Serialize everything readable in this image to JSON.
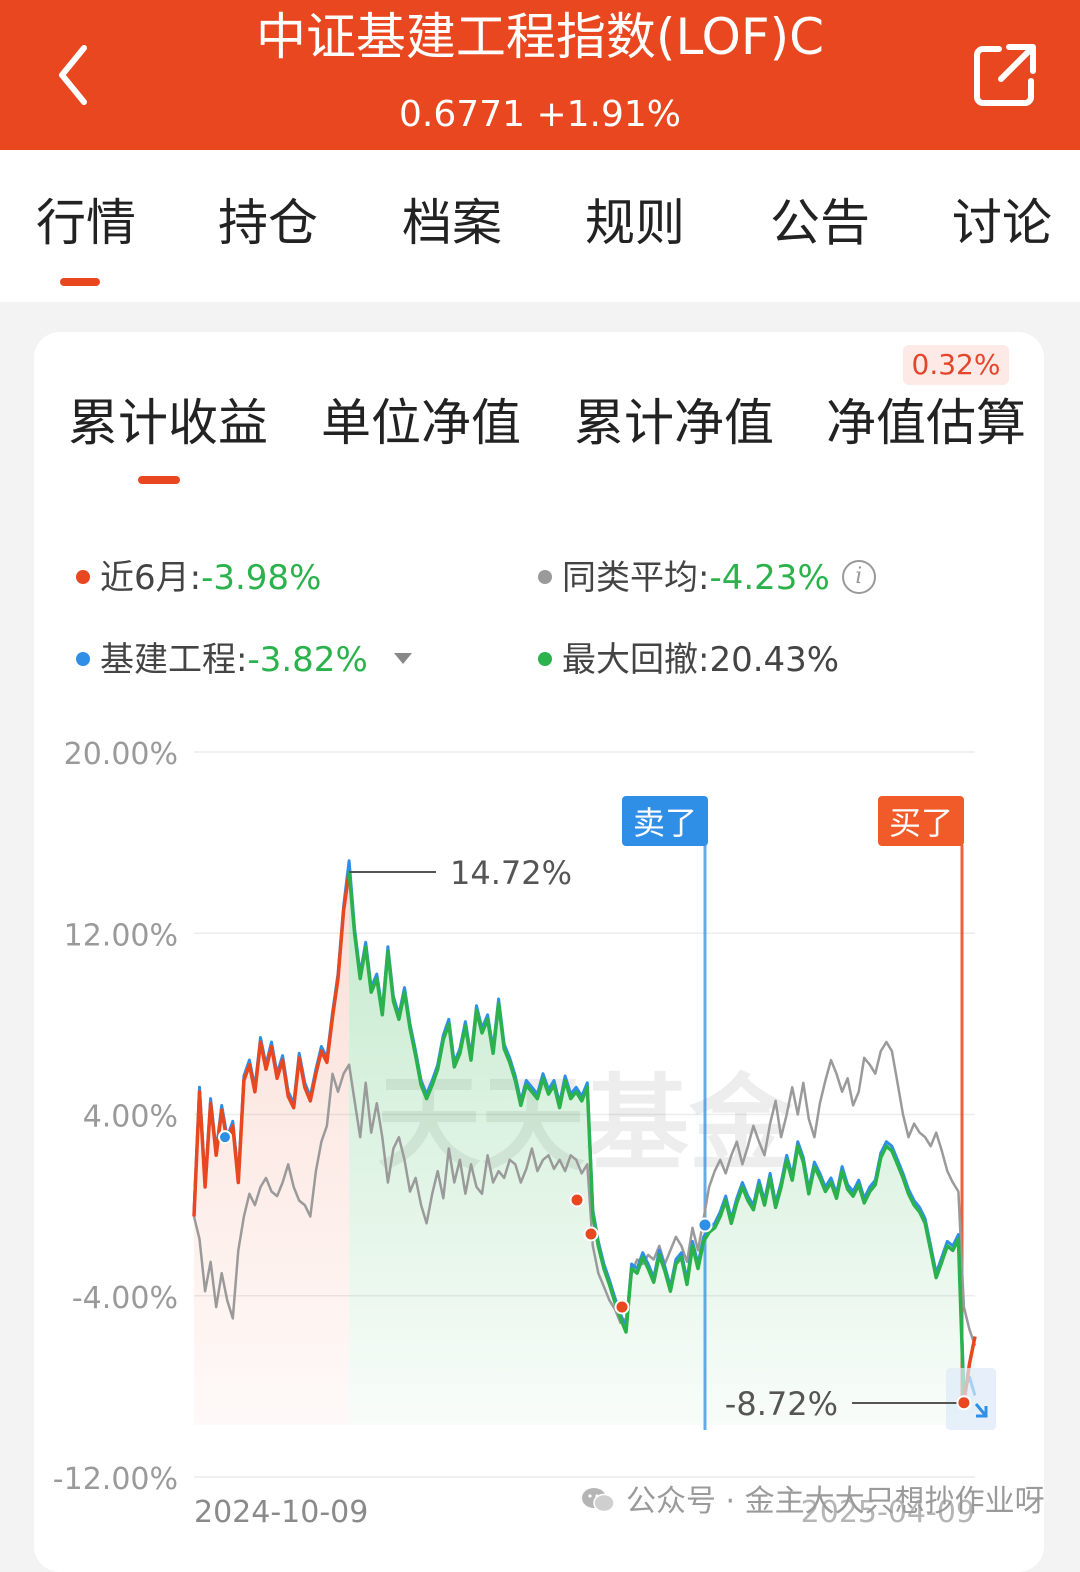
{
  "header": {
    "title": "中证基建工程指数(LOF)C",
    "subtitle": "0.6771 +1.91%",
    "back_icon": "chevron-left-icon",
    "share_icon": "share-icon",
    "background": "#e9471f"
  },
  "tabs": [
    {
      "label": "行情",
      "active": true
    },
    {
      "label": "持仓",
      "active": false
    },
    {
      "label": "档案",
      "active": false
    },
    {
      "label": "规则",
      "active": false
    },
    {
      "label": "公告",
      "active": false
    },
    {
      "label": "讨论",
      "active": false
    }
  ],
  "subtabs": [
    {
      "label": "累计收益",
      "active": true
    },
    {
      "label": "单位净值",
      "active": false
    },
    {
      "label": "累计净值",
      "active": false
    },
    {
      "label": "净值估算",
      "active": false
    }
  ],
  "estimate_badge": "0.32%",
  "stats": {
    "fund": {
      "label": "近6月:",
      "value": "-3.98%",
      "color": "#e9471f"
    },
    "category_avg": {
      "label": "同类平均:",
      "value": "-4.23%",
      "color": "#9a9a9a"
    },
    "benchmark": {
      "label": "基建工程:",
      "value": "-3.82%",
      "color": "#2f8fe6"
    },
    "max_drawdown": {
      "label": "最大回撤:",
      "value": "20.43%",
      "color": "#2bb24c"
    }
  },
  "chart_data": {
    "type": "line",
    "y_ticks": [
      "20.00%",
      "12.00%",
      "4.00%",
      "-4.00%",
      "-12.00%"
    ],
    "ylim": [
      -12,
      20
    ],
    "x_labels": [
      "2024-10-09",
      "2025-04-09"
    ],
    "watermark": "天天基金",
    "annotations": {
      "max": "14.72%",
      "min": "-8.72%",
      "sell": "卖了",
      "buy": "买了"
    },
    "series": [
      {
        "color": "#e9471f",
        "values": [
          -0.5,
          5.0,
          0.8,
          4.5,
          2.2,
          4.2,
          2.8,
          3.5,
          1.0,
          5.5,
          6.2,
          5.0,
          7.2,
          6.0,
          7.0,
          5.6,
          6.4,
          4.8,
          4.3,
          6.5,
          5.2,
          4.6,
          5.8,
          6.8,
          6.3,
          8.3,
          10.0,
          13.0,
          14.72,
          12.0,
          10.0,
          11.4,
          9.4,
          10.0,
          8.4,
          11.2,
          9.0,
          8.2,
          9.4,
          7.8,
          6.6,
          5.3,
          4.7,
          5.3,
          6.0,
          7.3,
          8.0,
          6.1,
          6.7,
          7.9,
          6.4,
          8.6,
          7.6,
          8.2,
          6.7,
          8.9,
          6.9,
          6.3,
          5.5,
          4.4,
          5.3,
          5.0,
          4.7,
          5.6,
          4.9,
          5.3,
          4.3,
          5.5,
          4.7,
          5.0,
          4.6,
          5.2,
          -0.4,
          -1.8,
          -2.8,
          -3.5,
          -4.3,
          -5.0,
          -5.6,
          -2.8,
          -3.0,
          -2.3,
          -2.8,
          -3.4,
          -2.2,
          -2.9,
          -3.8,
          -2.6,
          -2.3,
          -3.5,
          -1.8,
          -2.8,
          -1.6,
          -1.2,
          -1.0,
          -0.5,
          0.2,
          -0.8,
          0.1,
          0.8,
          0.2,
          -0.2,
          0.9,
          0.0,
          1.2,
          -0.1,
          0.8,
          2.0,
          1.1,
          2.6,
          1.9,
          0.5,
          1.7,
          1.2,
          0.6,
          1.0,
          0.3,
          1.5,
          0.7,
          0.4,
          0.9,
          0.1,
          0.6,
          0.9,
          2.1,
          2.6,
          2.4,
          1.8,
          1.2,
          0.5,
          0.0,
          -0.3,
          -0.8,
          -2.0,
          -3.2,
          -2.5,
          -1.8,
          -2.0,
          -1.5,
          -8.72,
          -7.0,
          -5.8
        ]
      },
      {
        "color": "#2f8fe6",
        "values": [
          -0.3,
          5.2,
          1.0,
          4.7,
          2.4,
          4.4,
          3.0,
          3.7,
          1.2,
          5.7,
          6.4,
          5.2,
          7.4,
          6.2,
          7.2,
          5.8,
          6.6,
          5.0,
          4.5,
          6.7,
          5.4,
          4.8,
          6.0,
          7.0,
          6.5,
          8.5,
          10.2,
          13.2,
          15.2,
          12.2,
          10.2,
          11.6,
          9.6,
          10.2,
          8.6,
          11.4,
          9.2,
          8.4,
          9.6,
          8.0,
          6.8,
          5.5,
          4.9,
          5.5,
          6.2,
          7.5,
          8.2,
          6.3,
          6.9,
          8.1,
          6.6,
          8.8,
          7.8,
          8.4,
          6.9,
          9.1,
          7.1,
          6.5,
          5.7,
          4.6,
          5.5,
          5.2,
          4.9,
          5.8,
          5.1,
          5.5,
          4.5,
          5.7,
          4.9,
          5.2,
          4.8,
          5.4,
          -0.2,
          -1.6,
          -2.6,
          -3.3,
          -4.1,
          -4.8,
          -5.4,
          -2.6,
          -2.8,
          -2.1,
          -2.6,
          -3.2,
          -2.0,
          -2.7,
          -3.6,
          -2.4,
          -2.1,
          -3.3,
          -1.6,
          -2.6,
          -1.4,
          -1.0,
          -0.8,
          -0.3,
          0.4,
          -0.6,
          0.3,
          1.0,
          0.4,
          0.0,
          1.1,
          0.2,
          1.4,
          0.1,
          1.0,
          2.2,
          1.3,
          2.8,
          2.1,
          0.7,
          1.9,
          1.4,
          0.8,
          1.2,
          0.5,
          1.7,
          0.9,
          0.6,
          1.1,
          0.3,
          0.8,
          1.1,
          2.3,
          2.8,
          2.6,
          2.0,
          1.4,
          0.7,
          0.2,
          -0.1,
          -0.6,
          -1.8,
          -3.0,
          -2.3,
          -1.6,
          -1.8,
          -1.3,
          -8.2,
          -7.6,
          -8.4
        ]
      },
      {
        "color": "#9a9a9a",
        "values": [
          -0.5,
          -1.5,
          -3.8,
          -2.5,
          -4.5,
          -3.0,
          -4.2,
          -5.0,
          -2.0,
          -0.5,
          0.5,
          0.0,
          0.8,
          1.2,
          0.6,
          0.4,
          1.0,
          1.8,
          0.8,
          0.2,
          0.0,
          -0.5,
          1.5,
          2.8,
          3.5,
          5.8,
          5.0,
          5.8,
          6.2,
          4.6,
          3.0,
          5.4,
          3.2,
          4.5,
          3.0,
          1.0,
          2.5,
          3.0,
          2.0,
          0.6,
          1.2,
          0.0,
          -0.8,
          0.5,
          1.5,
          0.3,
          2.5,
          1.0,
          2.0,
          0.5,
          1.8,
          0.8,
          0.5,
          2.2,
          1.0,
          1.5,
          1.2,
          2.0,
          1.8,
          1.0,
          1.6,
          2.5,
          1.5,
          2.0,
          2.2,
          1.6,
          2.0,
          1.5,
          2.2,
          2.0,
          1.4,
          1.8,
          -1.8,
          -3.0,
          -3.6,
          -4.2,
          -4.6,
          -5.2,
          -5.0,
          -3.0,
          -2.4,
          -2.6,
          -2.2,
          -2.4,
          -1.8,
          -2.6,
          -2.0,
          -1.4,
          -1.8,
          -2.5,
          -1.0,
          -2.0,
          -0.6,
          0.8,
          1.5,
          2.0,
          1.4,
          2.2,
          2.8,
          1.8,
          2.6,
          3.5,
          2.8,
          2.2,
          3.6,
          4.6,
          3.0,
          4.0,
          5.2,
          4.0,
          5.4,
          3.8,
          3.0,
          4.5,
          5.5,
          6.4,
          5.8,
          5.0,
          5.6,
          4.4,
          5.0,
          6.5,
          6.2,
          5.8,
          6.8,
          7.2,
          6.8,
          5.4,
          4.0,
          3.0,
          3.6,
          3.2,
          3.0,
          2.6,
          3.2,
          2.4,
          1.5,
          1.0,
          0.6,
          -4.5,
          -5.5,
          -6.2
        ]
      }
    ]
  },
  "footer": {
    "watermark_text": "公众号 · 金主大大只想抄作业呀",
    "wechat_icon": "wechat-icon"
  }
}
